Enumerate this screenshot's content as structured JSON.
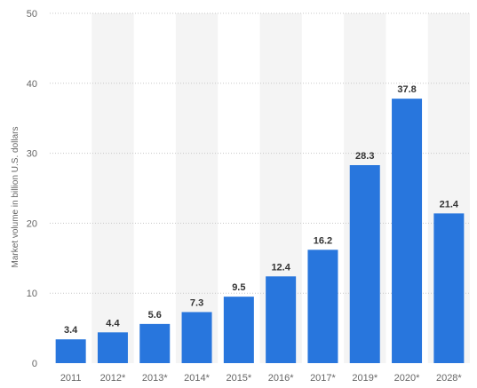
{
  "chart_data": {
    "type": "bar",
    "title": "",
    "xlabel": "",
    "ylabel": "Market volume in billion U.S. dollars",
    "ylim": [
      0,
      50
    ],
    "yticks": [
      0,
      10,
      20,
      30,
      40,
      50
    ],
    "grid": true,
    "categories": [
      "2011",
      "2012*",
      "2013*",
      "2014*",
      "2015*",
      "2016*",
      "2017*",
      "2019*",
      "2020*",
      "2028*"
    ],
    "values": [
      3.4,
      4.4,
      5.6,
      7.3,
      9.5,
      12.4,
      16.2,
      28.3,
      37.8,
      21.4
    ],
    "data_labels": [
      "3.4",
      "4.4",
      "5.6",
      "7.3",
      "9.5",
      "12.4",
      "16.2",
      "28.3",
      "37.8",
      "21.4"
    ],
    "colors": {
      "bar": "#2876dd",
      "band": "#f4f4f4",
      "grid": "#c8c8c8"
    }
  }
}
